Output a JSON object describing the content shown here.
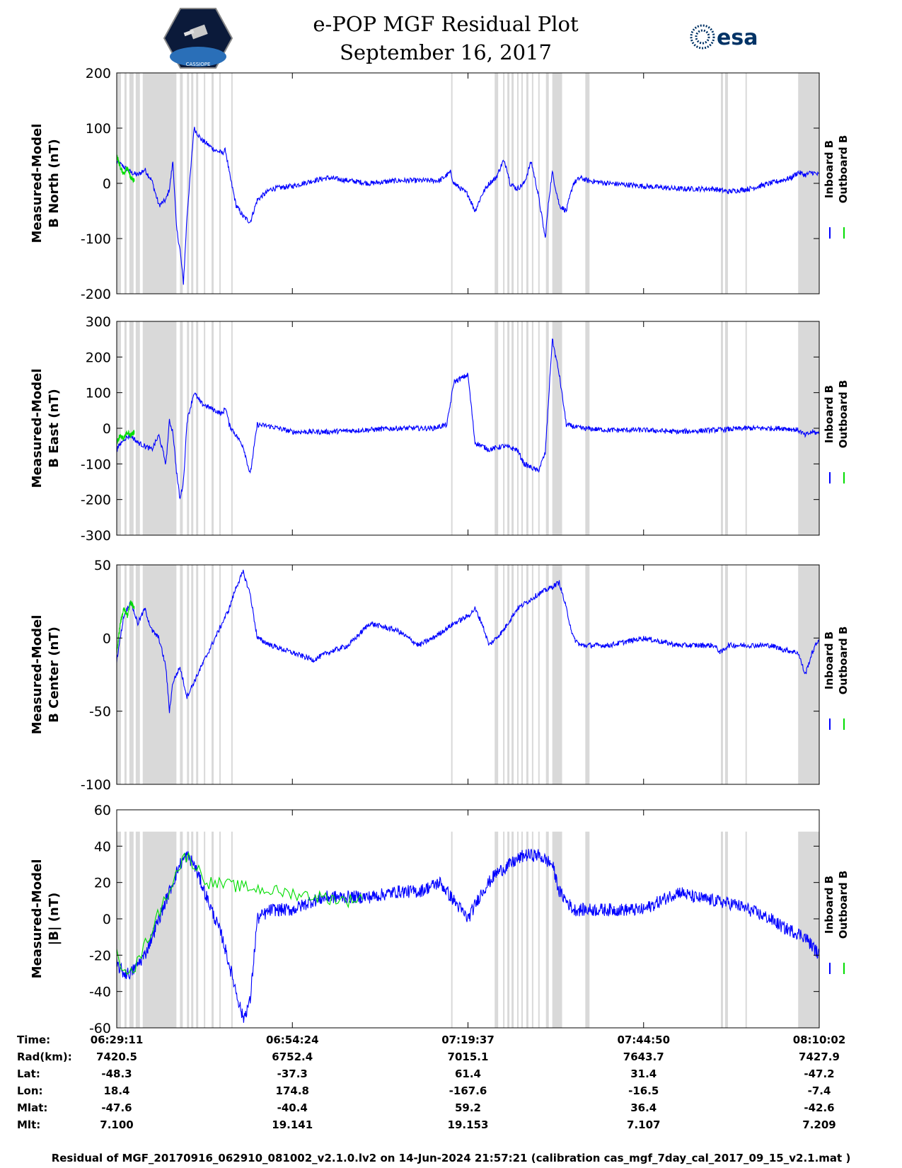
{
  "header": {
    "title_line1": "e-POP MGF Residual Plot",
    "title_line2": "September 16, 2017",
    "logo_left_text": "CASSIOPE",
    "logo_right_text": "esa"
  },
  "colors": {
    "inboard": "#0000ff",
    "outboard": "#00dd00",
    "gap_shade": "#d9d9d9"
  },
  "gap_intervals_frac": [
    [
      0.0,
      0.006
    ],
    [
      0.011,
      0.014
    ],
    [
      0.018,
      0.024
    ],
    [
      0.027,
      0.033
    ],
    [
      0.037,
      0.085
    ],
    [
      0.09,
      0.094
    ],
    [
      0.1,
      0.103
    ],
    [
      0.106,
      0.109
    ],
    [
      0.113,
      0.116
    ],
    [
      0.124,
      0.126
    ],
    [
      0.135,
      0.138
    ],
    [
      0.146,
      0.148
    ],
    [
      0.163,
      0.165
    ],
    [
      0.476,
      0.478
    ],
    [
      0.538,
      0.543
    ],
    [
      0.55,
      0.552
    ],
    [
      0.556,
      0.559
    ],
    [
      0.562,
      0.565
    ],
    [
      0.57,
      0.572
    ],
    [
      0.576,
      0.578
    ],
    [
      0.583,
      0.586
    ],
    [
      0.591,
      0.593
    ],
    [
      0.6,
      0.602
    ],
    [
      0.611,
      0.615
    ],
    [
      0.62,
      0.634
    ],
    [
      0.667,
      0.673
    ],
    [
      0.86,
      0.863
    ],
    [
      0.866,
      0.87
    ],
    [
      0.895,
      0.897
    ],
    [
      0.97,
      1.0
    ]
  ],
  "chart_data": [
    {
      "type": "line",
      "ylabel": "Measured-Model\nB North (nT)",
      "ylim": [
        -200,
        200
      ],
      "yticks": [
        -200,
        -100,
        0,
        100,
        200
      ],
      "legend": [
        "Inboard B",
        "Outboard B"
      ],
      "legend_placement": "right",
      "series": [
        {
          "name": "Inboard B",
          "x": [
            0,
            0.01,
            0.02,
            0.03,
            0.04,
            0.05,
            0.06,
            0.07,
            0.075,
            0.08,
            0.085,
            0.09,
            0.095,
            0.1,
            0.11,
            0.12,
            0.13,
            0.14,
            0.15,
            0.155,
            0.16,
            0.17,
            0.18,
            0.19,
            0.2,
            0.22,
            0.25,
            0.28,
            0.3,
            0.33,
            0.36,
            0.4,
            0.43,
            0.46,
            0.475,
            0.48,
            0.49,
            0.5,
            0.51,
            0.52,
            0.53,
            0.54,
            0.55,
            0.555,
            0.56,
            0.57,
            0.58,
            0.59,
            0.6,
            0.61,
            0.615,
            0.62,
            0.63,
            0.64,
            0.65,
            0.66,
            0.67,
            0.7,
            0.75,
            0.8,
            0.85,
            0.87,
            0.9,
            0.93,
            0.96,
            0.97,
            0.98,
            0.99,
            1.0
          ],
          "y": [
            40,
            30,
            20,
            15,
            25,
            5,
            -40,
            -30,
            -10,
            40,
            -80,
            -120,
            -180,
            -60,
            100,
            80,
            70,
            60,
            55,
            60,
            20,
            -40,
            -60,
            -70,
            -30,
            -10,
            -5,
            5,
            10,
            5,
            0,
            5,
            5,
            5,
            20,
            0,
            -10,
            -20,
            -50,
            -20,
            0,
            10,
            40,
            30,
            0,
            -10,
            0,
            40,
            -20,
            -100,
            -30,
            20,
            -40,
            -50,
            0,
            10,
            5,
            0,
            -5,
            -10,
            -10,
            -15,
            -10,
            0,
            10,
            20,
            15,
            20,
            15
          ]
        },
        {
          "name": "Outboard B",
          "x": [
            0,
            0.005,
            0.01,
            0.015,
            0.02,
            0.025
          ],
          "y": [
            50,
            30,
            15,
            30,
            10,
            5
          ]
        }
      ]
    },
    {
      "type": "line",
      "ylabel": "Measured-Model\nB East (nT)",
      "ylim": [
        -300,
        300
      ],
      "yticks": [
        -300,
        -200,
        -100,
        0,
        100,
        200,
        300
      ],
      "legend": [
        "Inboard B",
        "Outboard B"
      ],
      "legend_placement": "right",
      "series": [
        {
          "name": "Inboard B",
          "x": [
            0,
            0.01,
            0.02,
            0.03,
            0.04,
            0.05,
            0.06,
            0.07,
            0.075,
            0.08,
            0.085,
            0.09,
            0.095,
            0.1,
            0.11,
            0.12,
            0.13,
            0.14,
            0.15,
            0.155,
            0.16,
            0.17,
            0.18,
            0.19,
            0.2,
            0.22,
            0.25,
            0.3,
            0.35,
            0.4,
            0.45,
            0.47,
            0.48,
            0.5,
            0.51,
            0.52,
            0.53,
            0.55,
            0.57,
            0.58,
            0.6,
            0.61,
            0.62,
            0.63,
            0.64,
            0.65,
            0.66,
            0.7,
            0.75,
            0.8,
            0.85,
            0.9,
            0.95,
            0.97,
            0.98,
            0.99,
            1.0
          ],
          "y": [
            -60,
            -30,
            -20,
            -40,
            -50,
            -60,
            -20,
            -100,
            20,
            -10,
            -120,
            -200,
            -150,
            20,
            100,
            70,
            60,
            50,
            40,
            60,
            10,
            -20,
            -50,
            -130,
            10,
            5,
            -10,
            -10,
            -5,
            0,
            0,
            10,
            130,
            150,
            -40,
            -50,
            -60,
            -50,
            -60,
            -100,
            -120,
            -70,
            250,
            150,
            10,
            5,
            0,
            -5,
            -5,
            -10,
            -5,
            0,
            0,
            -5,
            -20,
            -10,
            -15
          ]
        },
        {
          "name": "Outboard B",
          "x": [
            0,
            0.005,
            0.01,
            0.015,
            0.02,
            0.025
          ],
          "y": [
            -40,
            -20,
            -30,
            -10,
            -20,
            -10
          ]
        }
      ]
    },
    {
      "type": "line",
      "ylabel": "Measured-Model\nB Center (nT)",
      "ylim": [
        -100,
        50
      ],
      "yticks": [
        -100,
        -50,
        0,
        50
      ],
      "legend": [
        "Inboard B",
        "Outboard B"
      ],
      "legend_placement": "right",
      "series": [
        {
          "name": "Inboard B",
          "x": [
            0,
            0.01,
            0.02,
            0.03,
            0.04,
            0.05,
            0.06,
            0.07,
            0.075,
            0.08,
            0.09,
            0.1,
            0.11,
            0.12,
            0.13,
            0.14,
            0.15,
            0.16,
            0.17,
            0.18,
            0.19,
            0.2,
            0.22,
            0.25,
            0.28,
            0.3,
            0.33,
            0.36,
            0.4,
            0.43,
            0.45,
            0.48,
            0.5,
            0.51,
            0.52,
            0.53,
            0.55,
            0.57,
            0.6,
            0.62,
            0.63,
            0.64,
            0.65,
            0.66,
            0.7,
            0.75,
            0.8,
            0.85,
            0.86,
            0.87,
            0.9,
            0.93,
            0.95,
            0.97,
            0.98,
            0.99,
            1.0
          ],
          "y": [
            -15,
            15,
            25,
            10,
            20,
            5,
            0,
            -20,
            -50,
            -30,
            -20,
            -40,
            -30,
            -20,
            -10,
            0,
            10,
            20,
            35,
            45,
            30,
            0,
            -5,
            -10,
            -15,
            -10,
            -5,
            10,
            5,
            -5,
            0,
            10,
            15,
            20,
            10,
            -5,
            5,
            20,
            30,
            35,
            38,
            20,
            0,
            -5,
            -5,
            0,
            -5,
            -5,
            -10,
            -5,
            -5,
            -5,
            -8,
            -10,
            -25,
            -10,
            0
          ]
        },
        {
          "name": "Outboard B",
          "x": [
            0,
            0.005,
            0.01,
            0.015,
            0.02,
            0.025
          ],
          "y": [
            -10,
            10,
            20,
            15,
            25,
            20
          ]
        }
      ]
    },
    {
      "type": "line",
      "ylabel": "Measured-Model\n|B| (nT)",
      "ylim": [
        -60,
        60
      ],
      "yticks": [
        -60,
        -40,
        -20,
        0,
        20,
        40,
        60
      ],
      "legend": [
        "Inboard B",
        "Outboard B"
      ],
      "legend_placement": "right",
      "series": [
        {
          "name": "Inboard B",
          "x": [
            0,
            0.01,
            0.02,
            0.03,
            0.04,
            0.05,
            0.06,
            0.07,
            0.08,
            0.09,
            0.1,
            0.11,
            0.12,
            0.13,
            0.14,
            0.15,
            0.16,
            0.17,
            0.18,
            0.19,
            0.2,
            0.22,
            0.25,
            0.28,
            0.3,
            0.33,
            0.36,
            0.4,
            0.43,
            0.46,
            0.48,
            0.5,
            0.52,
            0.54,
            0.56,
            0.58,
            0.6,
            0.62,
            0.63,
            0.65,
            0.68,
            0.7,
            0.75,
            0.8,
            0.82,
            0.85,
            0.88,
            0.9,
            0.93,
            0.95,
            0.97,
            0.98,
            0.99,
            1.0
          ],
          "y": [
            -25,
            -30,
            -30,
            -25,
            -20,
            -10,
            0,
            10,
            20,
            30,
            35,
            30,
            20,
            10,
            0,
            -10,
            -25,
            -40,
            -55,
            -45,
            0,
            5,
            5,
            10,
            12,
            12,
            12,
            15,
            15,
            20,
            10,
            0,
            15,
            25,
            30,
            35,
            35,
            30,
            15,
            5,
            5,
            5,
            5,
            15,
            12,
            10,
            8,
            5,
            0,
            -5,
            -8,
            -10,
            -15,
            -20
          ]
        },
        {
          "name": "Outboard B",
          "x": [
            0,
            0.005,
            0.01,
            0.015,
            0.02,
            0.025,
            0.09,
            0.1,
            0.13,
            0.33,
            0.35
          ],
          "y": [
            -20,
            -25,
            -25,
            -28,
            -25,
            -28,
            30,
            35,
            20,
            10,
            12
          ]
        }
      ]
    }
  ],
  "orbit": {
    "labels": [
      "Time:",
      "Rad(km):",
      "Lat:",
      "Lon:",
      "Mlat:",
      "Mlt:"
    ],
    "columns": [
      {
        "time": "06:29:11",
        "rad": "7420.5",
        "lat": "-48.3",
        "lon": "18.4",
        "mlat": "-47.6",
        "mlt": "7.100"
      },
      {
        "time": "06:54:24",
        "rad": "6752.4",
        "lat": "-37.3",
        "lon": "174.8",
        "mlat": "-40.4",
        "mlt": "19.141"
      },
      {
        "time": "07:19:37",
        "rad": "7015.1",
        "lat": "61.4",
        "lon": "-167.6",
        "mlat": "59.2",
        "mlt": "19.153"
      },
      {
        "time": "07:44:50",
        "rad": "7643.7",
        "lat": "31.4",
        "lon": "-16.5",
        "mlat": "36.4",
        "mlt": "7.107"
      },
      {
        "time": "08:10:02",
        "rad": "7427.9",
        "lat": "-47.2",
        "lon": "-7.4",
        "mlat": "-42.6",
        "mlt": "7.209"
      }
    ]
  },
  "footer": "Residual of MGF_20170916_062910_081002_v2.1.0.lv2 on 14-Jun-2024 21:57:21 (calibration cas_mgf_7day_cal_2017_09_15_v2.1.mat )"
}
